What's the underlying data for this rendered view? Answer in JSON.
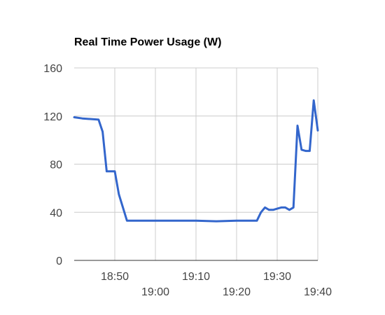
{
  "chart_data": {
    "type": "line",
    "title": "Real Time Power Usage (W)",
    "xlabel": "",
    "ylabel": "",
    "x_unit": "time",
    "xlim": [
      "18:40",
      "19:40"
    ],
    "ylim": [
      0,
      160
    ],
    "y_ticks": [
      "0",
      "40",
      "80",
      "120",
      "160"
    ],
    "x_ticks": [
      "18:50",
      "19:00",
      "19:10",
      "19:20",
      "19:30",
      "19:40"
    ],
    "grid": true,
    "legend": "none",
    "line_color": "#3366cc",
    "series": [
      {
        "x": [
          "18:40",
          "18:42",
          "18:46",
          "18:47",
          "18:48",
          "18:50",
          "18:51",
          "18:53",
          "18:55",
          "19:00",
          "19:10",
          "19:15",
          "19:20",
          "19:25",
          "19:26",
          "19:27",
          "19:28",
          "19:29",
          "19:30",
          "19:31",
          "19:32",
          "19:33",
          "19:34",
          "19:35",
          "19:36",
          "19:37",
          "19:38",
          "19:39",
          "19:40"
        ],
        "y": [
          119,
          118,
          117,
          107,
          74,
          74,
          55,
          33,
          33,
          33,
          33,
          32.5,
          33,
          33,
          40,
          44,
          42,
          42,
          43,
          44,
          44,
          42,
          44,
          112,
          92,
          91,
          91,
          133,
          108
        ]
      }
    ]
  }
}
